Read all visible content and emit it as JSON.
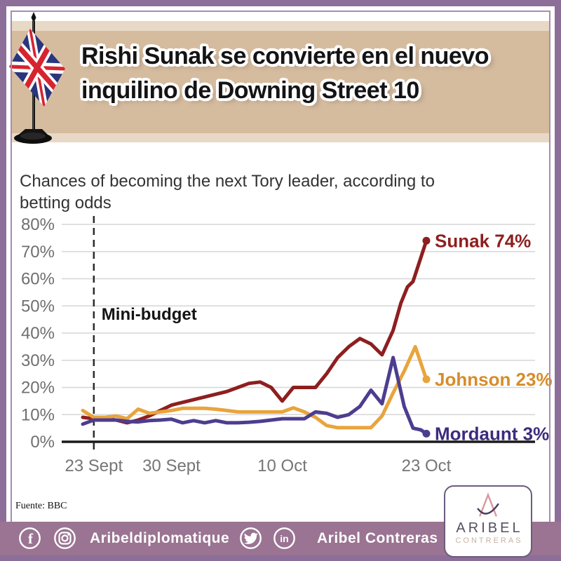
{
  "header": {
    "title_line1": "Rishi Sunak se convierte en el nuevo",
    "title_line2": "inquilino de Downing Street 10",
    "band_color": "#d6bc9f",
    "band_light_color": "#e8d9c7",
    "flag_icon": "uk-desk-flag-icon"
  },
  "border_color": "#8c6e99",
  "chart": {
    "subtitle_line1": "Chances of becoming the next Tory leader, according to",
    "subtitle_line2": "betting odds",
    "source": "Fuente: BBC"
  },
  "chart_data": {
    "type": "line",
    "title": "Chances of becoming the next Tory leader, according to betting odds",
    "x_unit": "days since 22 Sept 2022",
    "xlim": [
      0,
      31
    ],
    "ylim": [
      0,
      80
    ],
    "grid": "horizontal",
    "y_ticks": [
      {
        "label": "0%",
        "value": 0
      },
      {
        "label": "10%",
        "value": 10
      },
      {
        "label": "20%",
        "value": 20
      },
      {
        "label": "30%",
        "value": 30
      },
      {
        "label": "40%",
        "value": 40
      },
      {
        "label": "50%",
        "value": 50
      },
      {
        "label": "60%",
        "value": 60
      },
      {
        "label": "70%",
        "value": 70
      },
      {
        "label": "80%",
        "value": 80
      }
    ],
    "x_ticks": [
      {
        "label": "23 Sept",
        "day": 1
      },
      {
        "label": "30 Sept",
        "day": 8
      },
      {
        "label": "10 Oct",
        "day": 18
      },
      {
        "label": "23 Oct",
        "day": 31
      }
    ],
    "annotation": {
      "label": "Mini-budget",
      "day": 1,
      "style": "dashed-vertical-line"
    },
    "legend_position": "end-of-line labels",
    "series": [
      {
        "name": "Sunak",
        "end_label": "Sunak 74%",
        "end_value": 74,
        "color": "#8e1f1f",
        "label_color": "#8e1f1f",
        "points": [
          [
            0,
            9
          ],
          [
            1,
            8.5
          ],
          [
            2,
            8.5
          ],
          [
            3,
            8
          ],
          [
            4,
            7
          ],
          [
            5,
            8
          ],
          [
            6,
            9.5
          ],
          [
            7,
            11.5
          ],
          [
            8,
            13.5
          ],
          [
            9,
            14.5
          ],
          [
            10,
            15.5
          ],
          [
            11,
            16.5
          ],
          [
            12,
            17.5
          ],
          [
            13,
            18.5
          ],
          [
            14,
            20
          ],
          [
            15,
            21.5
          ],
          [
            16,
            22
          ],
          [
            17,
            20
          ],
          [
            18,
            15
          ],
          [
            19,
            20
          ],
          [
            20,
            20
          ],
          [
            21,
            20
          ],
          [
            22,
            25
          ],
          [
            23,
            31
          ],
          [
            24,
            35
          ],
          [
            25,
            38
          ],
          [
            26,
            36
          ],
          [
            27,
            32
          ],
          [
            28,
            41
          ],
          [
            28.7,
            51
          ],
          [
            29.3,
            57
          ],
          [
            29.8,
            59
          ],
          [
            31,
            74
          ]
        ]
      },
      {
        "name": "Johnson",
        "end_label": "Johnson 23%",
        "end_value": 23,
        "color": "#e9a43c",
        "label_color": "#d68d2a",
        "points": [
          [
            0,
            11.5
          ],
          [
            1,
            9
          ],
          [
            2,
            9
          ],
          [
            3,
            9.5
          ],
          [
            4,
            8.5
          ],
          [
            5,
            12
          ],
          [
            6,
            10.5
          ],
          [
            7,
            11
          ],
          [
            8,
            11.5
          ],
          [
            9,
            12.3
          ],
          [
            10,
            12.3
          ],
          [
            11,
            12.3
          ],
          [
            12,
            12
          ],
          [
            13,
            11.5
          ],
          [
            14,
            11
          ],
          [
            15,
            11
          ],
          [
            16,
            11
          ],
          [
            17,
            11
          ],
          [
            18,
            11
          ],
          [
            19,
            12.5
          ],
          [
            20,
            11
          ],
          [
            21,
            9
          ],
          [
            22,
            6
          ],
          [
            23,
            5.2
          ],
          [
            24,
            5.2
          ],
          [
            25,
            5.2
          ],
          [
            26,
            5.2
          ],
          [
            27,
            9.5
          ],
          [
            28,
            18
          ],
          [
            29,
            26
          ],
          [
            30,
            35
          ],
          [
            31,
            23
          ]
        ]
      },
      {
        "name": "Mordaunt",
        "end_label": "Mordaunt 3%",
        "end_value": 3,
        "color": "#4d3d8f",
        "label_color": "#3d2b7d",
        "points": [
          [
            0,
            6.5
          ],
          [
            1,
            8
          ],
          [
            2,
            8
          ],
          [
            3,
            8
          ],
          [
            4,
            7.5
          ],
          [
            5,
            7.3
          ],
          [
            6,
            7.8
          ],
          [
            7,
            8
          ],
          [
            8,
            8.3
          ],
          [
            9,
            7
          ],
          [
            10,
            7.8
          ],
          [
            11,
            7
          ],
          [
            12,
            7.8
          ],
          [
            13,
            7
          ],
          [
            14,
            7
          ],
          [
            15,
            7.2
          ],
          [
            16,
            7.5
          ],
          [
            17,
            8
          ],
          [
            18,
            8.5
          ],
          [
            19,
            8.5
          ],
          [
            20,
            8.5
          ],
          [
            21,
            11
          ],
          [
            22,
            10.5
          ],
          [
            23,
            9
          ],
          [
            24,
            10
          ],
          [
            25,
            13
          ],
          [
            26,
            19
          ],
          [
            27,
            14
          ],
          [
            28,
            31
          ],
          [
            29,
            13
          ],
          [
            29.8,
            5
          ],
          [
            30.5,
            4.4
          ],
          [
            31,
            3
          ]
        ]
      }
    ]
  },
  "footer": {
    "band_color": "#9a7492",
    "icons": [
      "facebook-icon",
      "instagram-icon",
      "twitter-icon",
      "linkedin-icon"
    ],
    "handle1": "Aribeldiplomatique",
    "handle2": "Aribel Contreras"
  },
  "logo": {
    "monogram": "aribel-a-monogram-icon",
    "line1": "ARIBEL",
    "line2": "CONTRERAS"
  }
}
